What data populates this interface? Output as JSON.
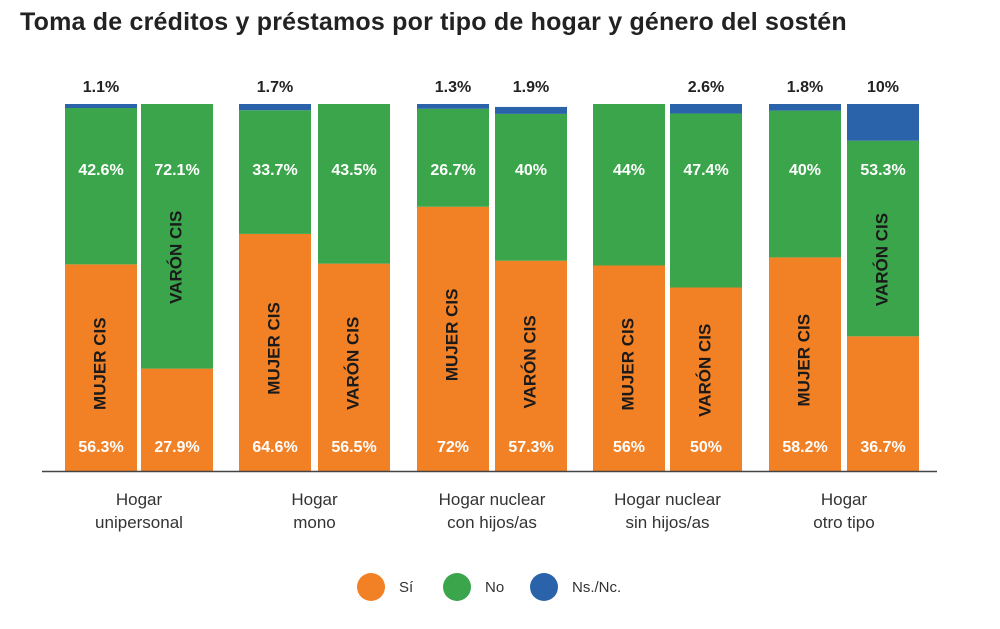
{
  "title": "Toma de créditos y préstamos por tipo de hogar y género del sostén",
  "chart_data": {
    "type": "bar",
    "stacked": true,
    "ylim": [
      0,
      100
    ],
    "grid": false,
    "legend_position": "bottom",
    "groups": [
      {
        "label_lines": [
          "Hogar",
          "unipersonal"
        ],
        "bars": [
          {
            "label": "MUJER CIS",
            "si": 56.3,
            "no": 42.6,
            "nsnc": 1.1,
            "si_label": "56.3%",
            "no_label": "42.6%",
            "nsnc_label": "1.1%",
            "label_in": "si"
          },
          {
            "label": "VARÓN CIS",
            "si": 27.9,
            "no": 72.1,
            "nsnc": 0,
            "si_label": "27.9%",
            "no_label": "72.1%",
            "nsnc_label": "",
            "label_in": "no"
          }
        ]
      },
      {
        "label_lines": [
          "Hogar",
          "mono"
        ],
        "bars": [
          {
            "label": "MUJER CIS",
            "si": 64.6,
            "no": 33.7,
            "nsnc": 1.7,
            "si_label": "64.6%",
            "no_label": "33.7%",
            "nsnc_label": "1.7%",
            "label_in": "si"
          },
          {
            "label": "VARÓN CIS",
            "si": 56.5,
            "no": 43.5,
            "nsnc": 0,
            "si_label": "56.5%",
            "no_label": "43.5%",
            "nsnc_label": "",
            "label_in": "si"
          }
        ]
      },
      {
        "label_lines": [
          "Hogar nuclear",
          "con hijos/as"
        ],
        "bars": [
          {
            "label": "MUJER CIS",
            "si": 72,
            "no": 26.7,
            "nsnc": 1.3,
            "si_label": "72%",
            "no_label": "26.7%",
            "nsnc_label": "1.3%",
            "label_in": "si"
          },
          {
            "label": "VARÓN CIS",
            "si": 57.3,
            "no": 40,
            "nsnc": 1.9,
            "si_label": "57.3%",
            "no_label": "40%",
            "nsnc_label": "1.9%",
            "label_in": "si"
          }
        ]
      },
      {
        "label_lines": [
          "Hogar nuclear",
          "sin hijos/as"
        ],
        "bars": [
          {
            "label": "MUJER CIS",
            "si": 56,
            "no": 44,
            "nsnc": 0,
            "si_label": "56%",
            "no_label": "44%",
            "nsnc_label": "",
            "label_in": "si"
          },
          {
            "label": "VARÓN CIS",
            "si": 50,
            "no": 47.4,
            "nsnc": 2.6,
            "si_label": "50%",
            "no_label": "47.4%",
            "nsnc_label": "2.6%",
            "label_in": "si"
          }
        ]
      },
      {
        "label_lines": [
          "Hogar",
          "otro tipo"
        ],
        "bars": [
          {
            "label": "MUJER CIS",
            "si": 58.2,
            "no": 40,
            "nsnc": 1.8,
            "si_label": "58.2%",
            "no_label": "40%",
            "nsnc_label": "1.8%",
            "label_in": "si"
          },
          {
            "label": "VARÓN CIS",
            "si": 36.7,
            "no": 53.3,
            "nsnc": 10,
            "si_label": "36.7%",
            "no_label": "53.3%",
            "nsnc_label": "10%",
            "label_in": "no"
          }
        ]
      }
    ],
    "legend": [
      {
        "key": "si",
        "label": "Sí",
        "color": "#F28025"
      },
      {
        "key": "no",
        "label": "No",
        "color": "#3AA54A"
      },
      {
        "key": "nsnc",
        "label": "Ns./Nc.",
        "color": "#2A63A9"
      }
    ]
  }
}
